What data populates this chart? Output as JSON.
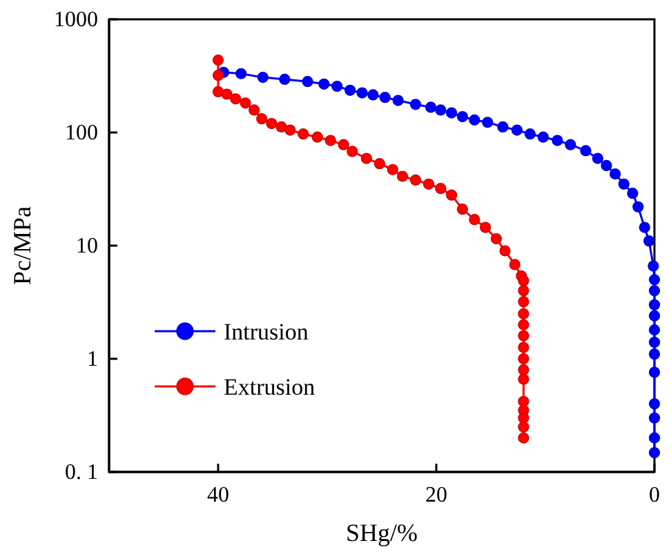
{
  "chart_data": {
    "type": "line",
    "xlabel": "SHg/%",
    "ylabel": "Pc/MPa",
    "log": "y",
    "xlim": [
      50,
      0
    ],
    "xticks": [
      40,
      20,
      0
    ],
    "ylim": [
      0.1,
      1000
    ],
    "yticks": [
      {
        "value": 0.1,
        "label": "0. 1"
      },
      1,
      10,
      100,
      1000
    ],
    "marker": "circle",
    "legend": "left",
    "grid": false,
    "series": [
      {
        "name": "Intrusion",
        "color": "#0000ff",
        "x": [
          39.5,
          37.9,
          35.9,
          33.9,
          31.8,
          30.3,
          29.1,
          27.9,
          26.8,
          25.8,
          24.7,
          23.5,
          21.9,
          20.5,
          19.6,
          18.6,
          17.6,
          16.5,
          15.3,
          13.9,
          12.6,
          11.4,
          10.2,
          8.9,
          7.7,
          6.3,
          5.2,
          4.4,
          3.6,
          2.8,
          2.0,
          1.5,
          0.9,
          0.5,
          0.1,
          0,
          0,
          0,
          0,
          0,
          0,
          0,
          0,
          0,
          0,
          0,
          0
        ],
        "values": [
          340,
          331,
          307,
          295,
          282,
          268,
          256,
          236,
          224,
          215,
          204,
          192,
          177,
          167,
          158,
          149,
          138,
          129,
          123,
          112,
          105,
          97,
          91,
          85,
          78,
          69,
          59,
          51,
          43,
          35,
          29,
          22,
          14.5,
          11,
          6.6,
          5,
          4,
          3,
          2.4,
          1.8,
          1.4,
          1.1,
          0.76,
          0.4,
          0.3,
          0.2,
          0.148
        ]
      },
      {
        "name": "Extrusion",
        "color": "#ff0000",
        "x": [
          40,
          40,
          40,
          39.2,
          38.4,
          37.5,
          36.7,
          36.0,
          35.1,
          34.2,
          33.4,
          32.2,
          30.9,
          29.7,
          28.5,
          27.7,
          26.4,
          25.2,
          24.0,
          23.1,
          21.9,
          20.7,
          19.6,
          18.6,
          17.6,
          16.5,
          15.5,
          14.5,
          13.7,
          12.8,
          12.2,
          12,
          12,
          12,
          12,
          12,
          12,
          12,
          12,
          12,
          12,
          12,
          12,
          12,
          12,
          12
        ],
        "values": [
          436,
          320,
          229,
          218,
          198,
          182,
          158,
          132,
          120,
          112,
          105,
          97,
          91,
          85,
          78,
          68,
          59,
          53,
          47,
          41,
          38,
          35,
          32,
          28,
          21,
          17,
          14.5,
          11.5,
          9,
          6.8,
          5.4,
          4.9,
          4,
          3.2,
          2.5,
          2,
          1.6,
          1.26,
          1,
          0.8,
          0.66,
          0.42,
          0.35,
          0.3,
          0.25,
          0.2
        ]
      }
    ]
  }
}
